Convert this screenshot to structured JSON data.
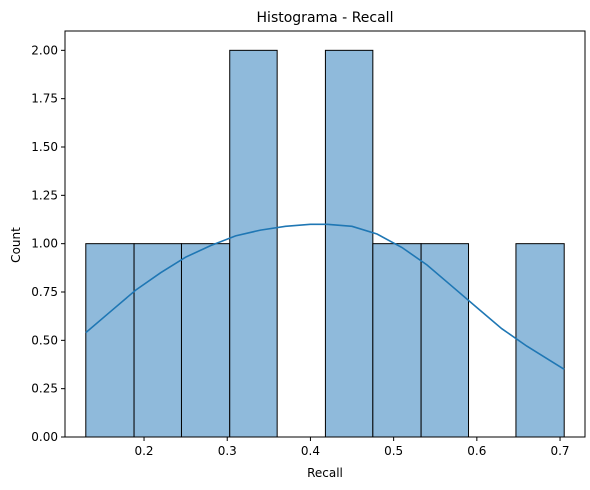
{
  "chart_data": {
    "type": "bar",
    "title": "Histograma - Recall",
    "xlabel": "Recall",
    "ylabel": "Count",
    "xlim": [
      0.105,
      0.73
    ],
    "ylim": [
      0,
      2.1
    ],
    "xticks": [
      0.2,
      0.3,
      0.4,
      0.5,
      0.6,
      0.7
    ],
    "xtick_labels": [
      "0.2",
      "0.3",
      "0.4",
      "0.5",
      "0.6",
      "0.7"
    ],
    "yticks": [
      0,
      0.25,
      0.5,
      0.75,
      1.0,
      1.25,
      1.5,
      1.75,
      2.0
    ],
    "ytick_labels": [
      "0.00",
      "0.25",
      "0.50",
      "0.75",
      "1.00",
      "1.25",
      "1.50",
      "1.75",
      "2.00"
    ],
    "bins": [
      {
        "x0": 0.13,
        "x1": 0.188,
        "count": 1
      },
      {
        "x0": 0.188,
        "x1": 0.245,
        "count": 1
      },
      {
        "x0": 0.245,
        "x1": 0.303,
        "count": 1
      },
      {
        "x0": 0.303,
        "x1": 0.36,
        "count": 2
      },
      {
        "x0": 0.36,
        "x1": 0.418,
        "count": 0
      },
      {
        "x0": 0.418,
        "x1": 0.475,
        "count": 2
      },
      {
        "x0": 0.475,
        "x1": 0.533,
        "count": 1
      },
      {
        "x0": 0.533,
        "x1": 0.59,
        "count": 1
      },
      {
        "x0": 0.59,
        "x1": 0.647,
        "count": 0
      },
      {
        "x0": 0.647,
        "x1": 0.705,
        "count": 1
      }
    ],
    "kde": {
      "x": [
        0.13,
        0.16,
        0.19,
        0.22,
        0.25,
        0.28,
        0.31,
        0.34,
        0.37,
        0.4,
        0.42,
        0.45,
        0.48,
        0.51,
        0.54,
        0.57,
        0.6,
        0.63,
        0.66,
        0.69,
        0.705
      ],
      "y": [
        0.54,
        0.65,
        0.76,
        0.85,
        0.93,
        0.99,
        1.04,
        1.07,
        1.09,
        1.1,
        1.1,
        1.09,
        1.05,
        0.98,
        0.89,
        0.78,
        0.67,
        0.56,
        0.47,
        0.39,
        0.35
      ]
    },
    "bar_fill": "#8fbadb",
    "bar_edge": "#000000",
    "kde_color": "#1f77b4",
    "grid": false,
    "legend": "none"
  }
}
